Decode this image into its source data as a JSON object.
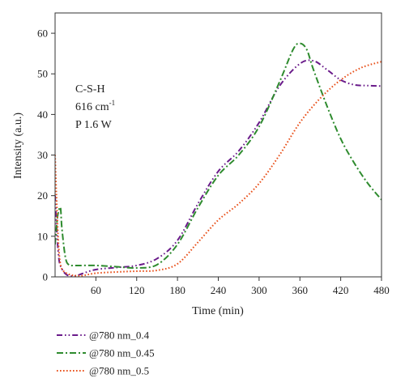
{
  "chart_data": {
    "type": "line",
    "xlabel": "Time (min)",
    "ylabel": "Intensity (a.u.)",
    "xlim": [
      0,
      480
    ],
    "ylim": [
      0,
      65
    ],
    "xticks": [
      60,
      120,
      180,
      240,
      300,
      360,
      420,
      480
    ],
    "yticks": [
      0,
      10,
      20,
      30,
      40,
      50,
      60
    ],
    "grid": false,
    "legend_position": "bottom-left, outside plot",
    "annotation": {
      "line1": "C-S-H",
      "line2_base": "616 cm",
      "line2_sup": "-1",
      "line3": "P 1.6 W"
    },
    "series": [
      {
        "name": "@780 nm_0.4",
        "color": "#6a1b8a",
        "dash": "dash-dot-dot",
        "x": [
          0,
          3,
          6,
          10,
          15,
          20,
          30,
          40,
          60,
          90,
          120,
          150,
          180,
          210,
          240,
          270,
          300,
          330,
          360,
          380,
          400,
          420,
          440,
          460,
          480
        ],
        "y": [
          20,
          10,
          4,
          2,
          0.8,
          0.3,
          0.2,
          0.8,
          1.8,
          2.3,
          2.8,
          4.5,
          9,
          18,
          26,
          31,
          38,
          47,
          52.5,
          53.2,
          51,
          48.5,
          47.3,
          47.1,
          47
        ]
      },
      {
        "name": "@780 nm_0.45",
        "color": "#2e8b2e",
        "dash": "dash-dot",
        "x": [
          0,
          3,
          5,
          8,
          10,
          15,
          20,
          30,
          60,
          90,
          120,
          150,
          180,
          210,
          240,
          270,
          300,
          330,
          350,
          360,
          370,
          380,
          400,
          420,
          440,
          460,
          480
        ],
        "y": [
          8,
          14,
          16,
          17,
          12,
          5,
          3,
          2.8,
          2.8,
          2.5,
          2.2,
          3,
          8,
          17,
          25,
          30,
          37,
          48,
          56,
          57.5,
          56,
          51,
          42,
          34,
          28,
          23,
          19
        ]
      },
      {
        "name": "@780 nm_0.5",
        "color": "#e8501a",
        "dash": "dotted",
        "x": [
          0,
          2,
          5,
          8,
          12,
          18,
          25,
          30,
          40,
          60,
          90,
          120,
          150,
          180,
          210,
          240,
          270,
          300,
          330,
          360,
          390,
          420,
          450,
          480
        ],
        "y": [
          30,
          20,
          8,
          3,
          1.5,
          0.8,
          0.4,
          0.3,
          0.3,
          0.9,
          1.2,
          1.4,
          1.6,
          3.2,
          8.5,
          14,
          18,
          23,
          30,
          38,
          44,
          48.5,
          51.5,
          53
        ]
      }
    ]
  }
}
